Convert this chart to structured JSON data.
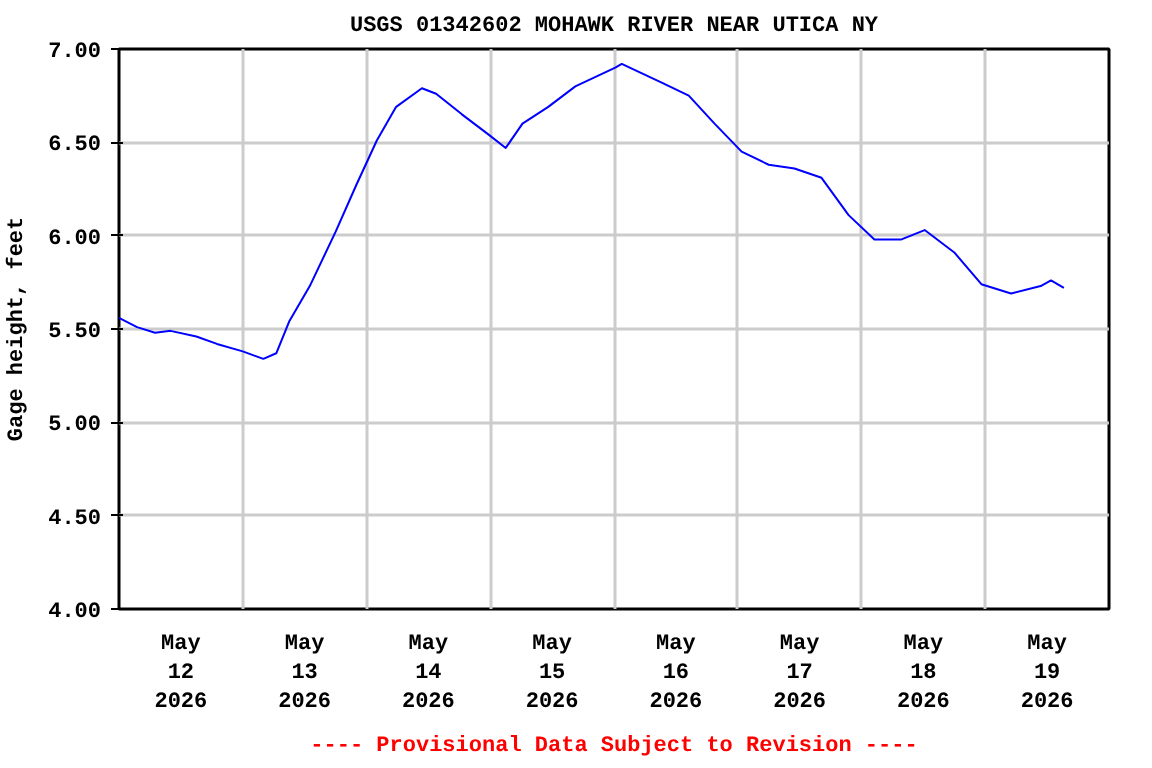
{
  "chart_data": {
    "type": "line",
    "title": "USGS 01342602 MOHAWK RIVER NEAR UTICA NY",
    "ylabel": "Gage height, feet",
    "annotations": [
      "---- Provisional Data Subject to Revision ----"
    ],
    "x": [
      "2026-05-12T00:00",
      "2026-05-12T03:30",
      "2026-05-12T07:00",
      "2026-05-12T10:00",
      "2026-05-12T15:00",
      "2026-05-12T19:00",
      "2026-05-13T00:00",
      "2026-05-13T04:00",
      "2026-05-13T06:30",
      "2026-05-13T09:00",
      "2026-05-13T13:00",
      "2026-05-13T18:00",
      "2026-05-13T22:00",
      "2026-05-14T02:00",
      "2026-05-14T05:45",
      "2026-05-14T10:45",
      "2026-05-14T13:30",
      "2026-05-14T18:30",
      "2026-05-14T23:45",
      "2026-05-15T03:00",
      "2026-05-15T06:15",
      "2026-05-15T11:15",
      "2026-05-15T16:30",
      "2026-05-16T00:15",
      "2026-05-16T01:30",
      "2026-05-16T09:15",
      "2026-05-16T14:30",
      "2026-05-16T19:30",
      "2026-05-17T00:45",
      "2026-05-17T06:00",
      "2026-05-17T11:00",
      "2026-05-17T16:15",
      "2026-05-17T21:30",
      "2026-05-18T02:30",
      "2026-05-18T07:45",
      "2026-05-18T12:15",
      "2026-05-18T18:00",
      "2026-05-18T23:15",
      "2026-05-19T05:00",
      "2026-05-19T10:45",
      "2026-05-19T12:45",
      "2026-05-19T15:15"
    ],
    "series": [
      {
        "color": "#0000ff",
        "values": [
          5.56,
          5.51,
          5.48,
          5.49,
          5.46,
          5.42,
          5.38,
          5.34,
          5.37,
          5.54,
          5.73,
          6.02,
          6.27,
          6.51,
          6.69,
          6.79,
          6.76,
          6.65,
          6.54,
          6.47,
          6.6,
          6.69,
          6.8,
          6.9,
          6.92,
          6.82,
          6.75,
          6.6,
          6.45,
          6.38,
          6.36,
          6.31,
          6.11,
          5.98,
          5.98,
          6.03,
          5.91,
          5.74,
          5.69,
          5.73,
          5.76,
          5.72
        ]
      }
    ],
    "xlim": [
      "2026-05-12T00:00",
      "2026-05-20T00:00"
    ],
    "xticks": [
      {
        "value": "2026-05-12T12:00",
        "label": "May\n12\n2026"
      },
      {
        "value": "2026-05-13T12:00",
        "label": "May\n13\n2026"
      },
      {
        "value": "2026-05-14T12:00",
        "label": "May\n14\n2026"
      },
      {
        "value": "2026-05-15T12:00",
        "label": "May\n15\n2026"
      },
      {
        "value": "2026-05-16T12:00",
        "label": "May\n16\n2026"
      },
      {
        "value": "2026-05-17T12:00",
        "label": "May\n17\n2026"
      },
      {
        "value": "2026-05-18T12:00",
        "label": "May\n18\n2026"
      },
      {
        "value": "2026-05-19T12:00",
        "label": "May\n19\n2026"
      },
      {
        "value": "2026-05-13T00:00",
        "label": null
      },
      {
        "value": "2026-05-14T00:00",
        "label": null
      },
      {
        "value": "2026-05-15T00:00",
        "label": null
      },
      {
        "value": "2026-05-16T00:00",
        "label": null
      },
      {
        "value": "2026-05-17T00:00",
        "label": null
      },
      {
        "value": "2026-05-18T00:00",
        "label": null
      },
      {
        "value": "2026-05-19T00:00",
        "label": null
      }
    ],
    "ylim": [
      4.0,
      7.0
    ],
    "yticks": [
      {
        "value": 4.0,
        "label": "4.00"
      },
      {
        "value": 4.5,
        "label": "4.50"
      },
      {
        "value": 5.0,
        "label": "5.00"
      },
      {
        "value": 5.5,
        "label": "5.50"
      },
      {
        "value": 6.0,
        "label": "6.00"
      },
      {
        "value": 6.5,
        "label": "6.50"
      },
      {
        "value": 7.0,
        "label": "7.00"
      }
    ],
    "grid": true,
    "marker": "none",
    "line_style": "solid"
  }
}
